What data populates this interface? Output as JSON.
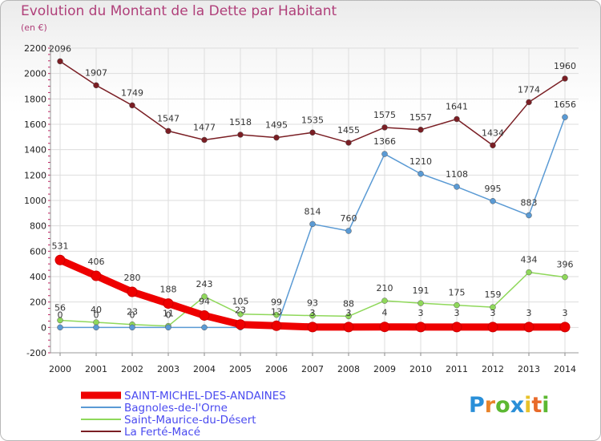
{
  "title": "Evolution du Montant de la Dette par Habitant",
  "subtitle": "(en €)",
  "logo": "Proxiti",
  "chart_data": {
    "type": "line",
    "title": "Evolution du Montant de la Dette par Habitant",
    "subtitle": "(en €)",
    "x": [
      2000,
      2001,
      2002,
      2003,
      2004,
      2005,
      2006,
      2007,
      2008,
      2009,
      2010,
      2011,
      2012,
      2013,
      2014
    ],
    "ylim": [
      -200,
      2200
    ],
    "yticks": [
      -200,
      0,
      200,
      400,
      600,
      800,
      1000,
      1200,
      1400,
      1600,
      1800,
      2000,
      2200
    ],
    "grid": true,
    "legend_position": "bottom-left",
    "series": [
      {
        "name": "SAINT-MICHEL-DES-ANDAINES",
        "color": "#ee0000",
        "values": [
          531,
          406,
          280,
          188,
          94,
          23,
          13,
          3,
          3,
          4,
          3,
          3,
          3,
          3,
          3
        ],
        "labels": [
          "531",
          "406",
          "280",
          "188",
          "94",
          "23",
          "13",
          "3",
          "3",
          "4",
          "3",
          "3",
          "3",
          "3",
          "3"
        ]
      },
      {
        "name": "Bagnoles-de-l'Orne",
        "color": "#5a9ad4",
        "values": [
          0,
          0,
          0,
          0,
          0,
          0,
          0,
          814,
          760,
          1366,
          1210,
          1108,
          995,
          883,
          1656
        ],
        "labels": [
          "0",
          "0",
          "0",
          "0",
          "",
          "",
          "",
          "814",
          "760",
          "1366",
          "1210",
          "1108",
          "995",
          "883",
          "1656"
        ]
      },
      {
        "name": "Saint-Maurice-du-Désert",
        "color": "#8fd85a",
        "values": [
          56,
          40,
          23,
          11,
          243,
          105,
          99,
          93,
          88,
          210,
          191,
          175,
          159,
          434,
          396
        ],
        "labels": [
          "56",
          "40",
          "23",
          "11",
          "243",
          "105",
          "99",
          "93",
          "88",
          "210",
          "191",
          "175",
          "159",
          "434",
          "396"
        ]
      },
      {
        "name": "La Ferté-Macé",
        "color": "#7a1e24",
        "values": [
          2096,
          1907,
          1749,
          1547,
          1477,
          1518,
          1495,
          1535,
          1455,
          1575,
          1557,
          1641,
          1434,
          1774,
          1960
        ],
        "labels": [
          "2096",
          "1907",
          "1749",
          "1547",
          "1477",
          "1518",
          "1495",
          "1535",
          "1455",
          "1575",
          "1557",
          "1641",
          "1434",
          "1774",
          "1960"
        ]
      }
    ]
  }
}
